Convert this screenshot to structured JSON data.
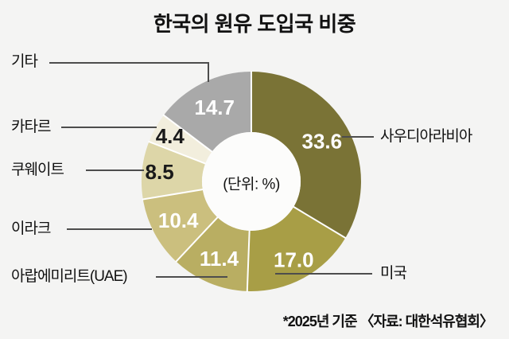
{
  "title": "한국의 원유 도입국 비중",
  "center_unit_label": "(단위: %)",
  "footnote": "*2025년 기준 〈자료: 대한석유협회〉",
  "colors": {
    "background": "#f4f4f3",
    "leader_line": "#4d4d4d",
    "separator": "#ffffff",
    "inner_circle": "#fcfcfb",
    "text": "#111111"
  },
  "chart_data": {
    "type": "pie",
    "subtype": "donut",
    "title": "한국의 원유 도입국 비중",
    "unit": "%",
    "unit_label": "(단위: %)",
    "start": "top",
    "direction": "clockwise",
    "total": 100.0,
    "footnote": "*2025년 기준 〈자료: 대한석유협회〉",
    "segments": [
      {
        "label": "사우디아라비아",
        "value": 33.6,
        "color": "#7a7336",
        "value_text_color": "#ffffff"
      },
      {
        "label": "미국",
        "value": 17.0,
        "color": "#a89e46",
        "value_text_color": "#ffffff"
      },
      {
        "label": "아랍에미리트(UAE)",
        "value": 11.4,
        "color": "#b9ae62",
        "value_text_color": "#ffffff"
      },
      {
        "label": "이라크",
        "value": 10.4,
        "color": "#cbbf7e",
        "value_text_color": "#ffffff"
      },
      {
        "label": "쿠웨이트",
        "value": 8.5,
        "color": "#ddd6a8",
        "value_text_color": "#1a1a1a"
      },
      {
        "label": "카타르",
        "value": 4.4,
        "color": "#f2eedd",
        "value_text_color": "#1a1a1a"
      },
      {
        "label": "기타",
        "value": 14.7,
        "color": "#a9a9a9",
        "value_text_color": "#ffffff"
      }
    ]
  }
}
